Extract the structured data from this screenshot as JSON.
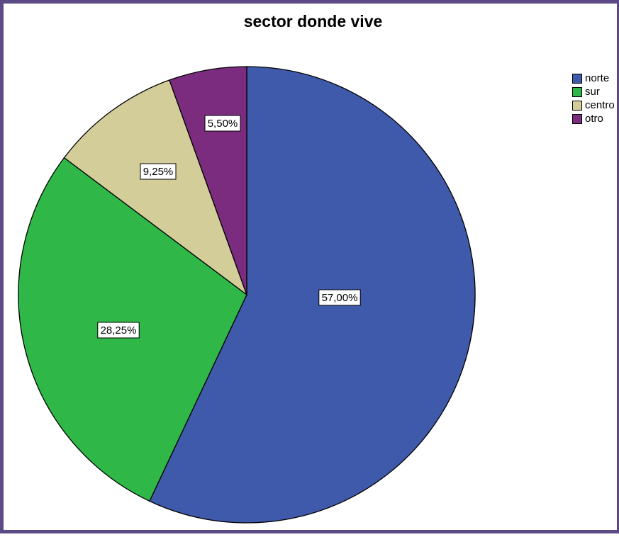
{
  "chart_data": {
    "type": "pie",
    "title": "sector donde vive",
    "slices": [
      {
        "label": "norte",
        "value": 57.0,
        "display": "57,00%",
        "color": "#3f59ab"
      },
      {
        "label": "sur",
        "value": 28.25,
        "display": "28,25%",
        "color": "#2fb847"
      },
      {
        "label": "centro",
        "value": 9.25,
        "display": "9,25%",
        "color": "#d3cd9a"
      },
      {
        "label": "otro",
        "value": 5.5,
        "display": "5,50%",
        "color": "#7b2c7f"
      }
    ],
    "legend_position": "top-right",
    "start": "12 o'clock",
    "direction": "clockwise"
  }
}
